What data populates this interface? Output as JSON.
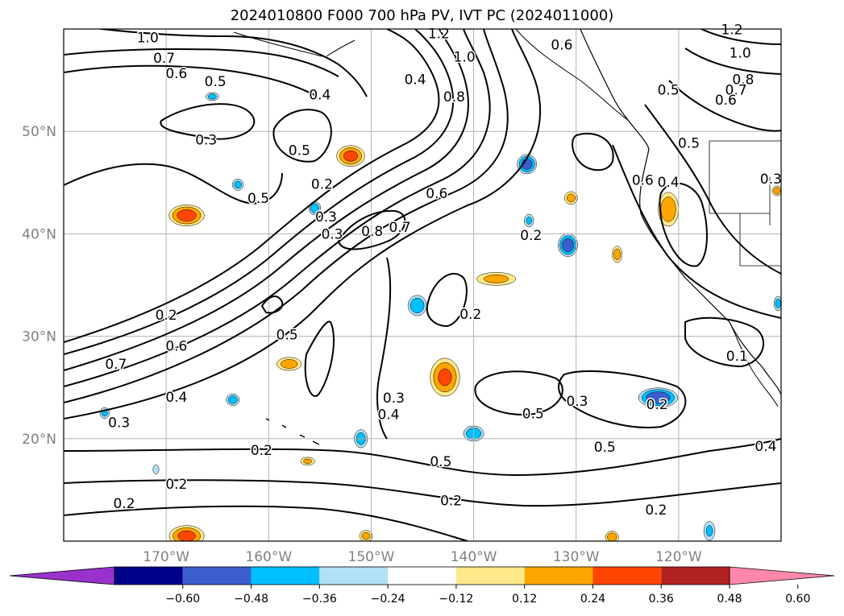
{
  "title": "2024010800 F000 700 hPa PV, IVT PC (2024011000)",
  "map": {
    "lat_ticks": [
      {
        "label": "50°N",
        "lat": 50
      },
      {
        "label": "40°N",
        "lat": 40
      },
      {
        "label": "30°N",
        "lat": 30
      },
      {
        "label": "20°N",
        "lat": 20
      }
    ],
    "lon_ticks": [
      {
        "label": "170°W",
        "lon": -170
      },
      {
        "label": "160°W",
        "lon": -160
      },
      {
        "label": "150°W",
        "lon": -150
      },
      {
        "label": "140°W",
        "lon": -140
      },
      {
        "label": "130°W",
        "lon": -130
      },
      {
        "label": "120°W",
        "lon": -120
      }
    ],
    "extent": {
      "lon_min": -180,
      "lon_max": -110,
      "lat_min": 10,
      "lat_max": 60
    },
    "contour_labels": [
      {
        "text": "1.0",
        "lon": -171.8,
        "lat": 59.1
      },
      {
        "text": "0.7",
        "lon": -170.2,
        "lat": 57.1
      },
      {
        "text": "0.6",
        "lon": -169.0,
        "lat": 55.6
      },
      {
        "text": "0.5",
        "lon": -165.2,
        "lat": 54.8
      },
      {
        "text": "1.2",
        "lon": -143.4,
        "lat": 59.5
      },
      {
        "text": "1.0",
        "lon": -140.9,
        "lat": 57.2
      },
      {
        "text": "0.6",
        "lon": -131.4,
        "lat": 58.4
      },
      {
        "text": "0.4",
        "lon": -145.7,
        "lat": 55.0
      },
      {
        "text": "0.8",
        "lon": -141.9,
        "lat": 53.3
      },
      {
        "text": "0.4",
        "lon": -155.0,
        "lat": 53.5
      },
      {
        "text": "0.3",
        "lon": -166.1,
        "lat": 49.1
      },
      {
        "text": "0.5",
        "lon": -157.0,
        "lat": 48.1
      },
      {
        "text": "0.5",
        "lon": -161.0,
        "lat": 43.4
      },
      {
        "text": "0.2",
        "lon": -154.8,
        "lat": 44.8
      },
      {
        "text": "0.3",
        "lon": -154.4,
        "lat": 41.6
      },
      {
        "text": "0.3",
        "lon": -153.8,
        "lat": 39.9
      },
      {
        "text": "0.8",
        "lon": -149.9,
        "lat": 40.2
      },
      {
        "text": "0.7",
        "lon": -147.2,
        "lat": 40.6
      },
      {
        "text": "0.6",
        "lon": -143.6,
        "lat": 43.9
      },
      {
        "text": "0.2",
        "lon": -134.4,
        "lat": 39.8
      },
      {
        "text": "0.2",
        "lon": -140.3,
        "lat": 32.1
      },
      {
        "text": "0.2",
        "lon": -170.0,
        "lat": 32.0
      },
      {
        "text": "0.6",
        "lon": -169.0,
        "lat": 29.0
      },
      {
        "text": "0.5",
        "lon": -158.2,
        "lat": 30.1
      },
      {
        "text": "0.7",
        "lon": -174.9,
        "lat": 27.2
      },
      {
        "text": "0.4",
        "lon": -169.0,
        "lat": 24.0
      },
      {
        "text": "0.3",
        "lon": -147.8,
        "lat": 23.9
      },
      {
        "text": "0.3",
        "lon": -174.6,
        "lat": 21.5
      },
      {
        "text": "0.4",
        "lon": -148.3,
        "lat": 22.3
      },
      {
        "text": "0.2",
        "lon": -160.7,
        "lat": 18.8
      },
      {
        "text": "0.2",
        "lon": -169.0,
        "lat": 15.5
      },
      {
        "text": "0.2",
        "lon": -174.1,
        "lat": 13.6
      },
      {
        "text": "0.2",
        "lon": -142.2,
        "lat": 13.9
      },
      {
        "text": "0.5",
        "lon": -143.2,
        "lat": 17.7
      },
      {
        "text": "0.5",
        "lon": -134.2,
        "lat": 22.4
      },
      {
        "text": "0.3",
        "lon": -129.9,
        "lat": 23.6
      },
      {
        "text": "0.2",
        "lon": -122.1,
        "lat": 23.3
      },
      {
        "text": "0.5",
        "lon": -127.2,
        "lat": 19.1
      },
      {
        "text": "0.2",
        "lon": -122.2,
        "lat": 13.0
      },
      {
        "text": "1.2",
        "lon": -114.8,
        "lat": 59.9
      },
      {
        "text": "1.0",
        "lon": -114.0,
        "lat": 57.6
      },
      {
        "text": "0.8",
        "lon": -113.7,
        "lat": 55.0
      },
      {
        "text": "0.7",
        "lon": -114.4,
        "lat": 54.0
      },
      {
        "text": "0.6",
        "lon": -115.4,
        "lat": 53.0
      },
      {
        "text": "0.5",
        "lon": -121.0,
        "lat": 54.0
      },
      {
        "text": "0.5",
        "lon": -119.0,
        "lat": 48.8
      },
      {
        "text": "0.4",
        "lon": -121.0,
        "lat": 45.0
      },
      {
        "text": "0.6",
        "lon": -123.5,
        "lat": 45.2
      },
      {
        "text": "0.3",
        "lon": -111.0,
        "lat": 45.3
      },
      {
        "text": "0.4",
        "lon": -111.5,
        "lat": 19.2
      },
      {
        "text": "0.1",
        "lon": -114.3,
        "lat": 28.0
      }
    ],
    "anomalies": [
      {
        "lon": -168.0,
        "lat": 41.8,
        "value": 0.4,
        "rx": 2.0,
        "ry": 1.2
      },
      {
        "lon": -152.0,
        "lat": 47.6,
        "value": 0.38,
        "rx": 1.6,
        "ry": 1.2
      },
      {
        "lon": -142.8,
        "lat": 26.0,
        "value": 0.36,
        "rx": 1.7,
        "ry": 2.2
      },
      {
        "lon": -137.8,
        "lat": 35.6,
        "value": 0.26,
        "rx": 2.4,
        "ry": 0.8
      },
      {
        "lon": -158.0,
        "lat": 27.3,
        "value": 0.28,
        "rx": 1.5,
        "ry": 0.8
      },
      {
        "lon": -121.0,
        "lat": 42.4,
        "value": 0.32,
        "rx": 1.2,
        "ry": 2.0
      },
      {
        "lon": -130.5,
        "lat": 43.5,
        "value": 0.26,
        "rx": 0.8,
        "ry": 0.8
      },
      {
        "lon": -126.0,
        "lat": 38.0,
        "value": 0.28,
        "rx": 0.6,
        "ry": 1.0
      },
      {
        "lon": -168.0,
        "lat": 10.5,
        "value": 0.38,
        "rx": 2.0,
        "ry": 1.2
      },
      {
        "lon": -150.5,
        "lat": 10.5,
        "value": 0.26,
        "rx": 0.8,
        "ry": 0.7
      },
      {
        "lon": -126.5,
        "lat": 10.4,
        "value": 0.3,
        "rx": 0.8,
        "ry": 0.7
      },
      {
        "lon": -156.2,
        "lat": 17.8,
        "value": 0.24,
        "rx": 0.9,
        "ry": 0.5
      },
      {
        "lon": -110.4,
        "lat": 44.2,
        "value": 0.28,
        "rx": 0.6,
        "ry": 0.6
      },
      {
        "lon": -134.8,
        "lat": 46.8,
        "value": -0.4,
        "rx": 1.1,
        "ry": 1.1
      },
      {
        "lon": -130.8,
        "lat": 38.9,
        "value": -0.42,
        "rx": 1.1,
        "ry": 1.3
      },
      {
        "lon": -122.0,
        "lat": 24.0,
        "value": -0.44,
        "rx": 2.2,
        "ry": 1.1
      },
      {
        "lon": -145.5,
        "lat": 33.0,
        "value": -0.32,
        "rx": 1.1,
        "ry": 1.2
      },
      {
        "lon": -140.0,
        "lat": 20.5,
        "value": -0.32,
        "rx": 1.2,
        "ry": 0.9
      },
      {
        "lon": -151.0,
        "lat": 20.0,
        "value": -0.28,
        "rx": 0.8,
        "ry": 1.1
      },
      {
        "lon": -155.5,
        "lat": 42.5,
        "value": -0.3,
        "rx": 0.7,
        "ry": 0.8
      },
      {
        "lon": -163.0,
        "lat": 44.8,
        "value": -0.26,
        "rx": 0.7,
        "ry": 0.7
      },
      {
        "lon": -165.5,
        "lat": 53.4,
        "value": -0.26,
        "rx": 0.8,
        "ry": 0.5
      },
      {
        "lon": -163.5,
        "lat": 23.8,
        "value": -0.28,
        "rx": 0.8,
        "ry": 0.7
      },
      {
        "lon": -176.0,
        "lat": 22.5,
        "value": -0.24,
        "rx": 0.6,
        "ry": 0.7
      },
      {
        "lon": -134.6,
        "lat": 41.3,
        "value": -0.24,
        "rx": 0.6,
        "ry": 0.8
      },
      {
        "lon": -117.0,
        "lat": 11.0,
        "value": -0.24,
        "rx": 0.7,
        "ry": 1.2
      },
      {
        "lon": -110.3,
        "lat": 33.2,
        "value": -0.26,
        "rx": 0.5,
        "ry": 0.9
      },
      {
        "lon": -171.0,
        "lat": 17.0,
        "value": -0.2,
        "rx": 0.4,
        "ry": 0.6
      }
    ]
  },
  "colorbar": {
    "tick_labels": [
      "−0.60",
      "−0.48",
      "−0.36",
      "−0.24",
      "−0.12",
      "0.12",
      "0.24",
      "0.36",
      "0.48",
      "0.60"
    ],
    "colors": [
      "#9932cc",
      "#00008b",
      "#3a5fcd",
      "#00bfff",
      "#b0e0f6",
      "#ffffff",
      "#ffe98a",
      "#ffa500",
      "#ff4500",
      "#b22222",
      "#ff88aa"
    ]
  }
}
